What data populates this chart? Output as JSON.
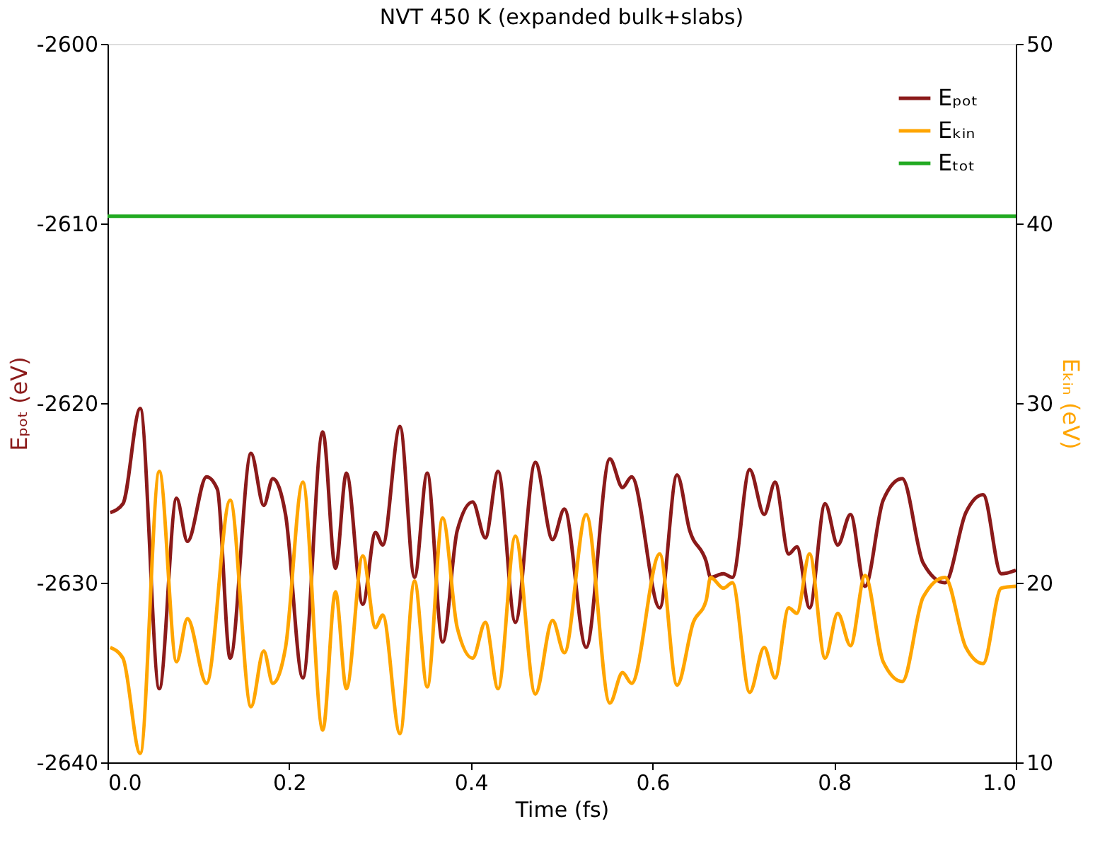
{
  "chart_data": {
    "type": "line",
    "title": "NVT 450 K (expanded bulk+slabs)",
    "xlabel": "Time (fs)",
    "ylabel": "Eₚₒₜ (eV)",
    "y2label": "Eₖᵢₙ (eV)",
    "xlim": [
      0,
      1
    ],
    "xticks": [
      {
        "value": 0,
        "label": "0.0"
      },
      0.2,
      0.4,
      0.6,
      0.8,
      {
        "value": 1,
        "label": "1.0"
      }
    ],
    "ylim": [
      -2640,
      -2600
    ],
    "yticks": [
      -2640,
      -2630,
      -2620,
      -2610,
      -2600
    ],
    "y2lim": [
      10,
      50
    ],
    "y2ticks": [
      10,
      20,
      30,
      40,
      50
    ],
    "legend": "top right",
    "series": [
      {
        "name": "Eₚₒₜ",
        "color": "#8b1a1a",
        "x": [
          0.003,
          0.017,
          0.036,
          0.057,
          0.076,
          0.088,
          0.109,
          0.121,
          0.135,
          0.158,
          0.172,
          0.182,
          0.196,
          0.215,
          0.237,
          0.251,
          0.263,
          0.281,
          0.295,
          0.303,
          0.322,
          0.338,
          0.352,
          0.369,
          0.385,
          0.402,
          0.416,
          0.43,
          0.449,
          0.471,
          0.49,
          0.503,
          0.527,
          0.553,
          0.567,
          0.577,
          0.608,
          0.627,
          0.641,
          0.659,
          0.664,
          0.678,
          0.688,
          0.707,
          0.723,
          0.735,
          0.75,
          0.759,
          0.773,
          0.79,
          0.804,
          0.818,
          0.834,
          0.854,
          0.875,
          0.898,
          0.922,
          0.945,
          0.964,
          0.984,
          1.0
        ],
        "values": [
          -2626.1,
          -2625.6,
          -2620.3,
          -2635.9,
          -2625.3,
          -2627.7,
          -2624.1,
          -2624.8,
          -2634.2,
          -2622.8,
          -2625.7,
          -2624.2,
          -2626.2,
          -2635.3,
          -2621.6,
          -2629.2,
          -2623.9,
          -2631.2,
          -2627.2,
          -2627.9,
          -2621.3,
          -2629.7,
          -2623.9,
          -2633.3,
          -2627.1,
          -2625.5,
          -2627.5,
          -2623.8,
          -2632.2,
          -2623.3,
          -2627.6,
          -2625.9,
          -2633.6,
          -2623.1,
          -2624.7,
          -2624.1,
          -2631.4,
          -2624.0,
          -2627.1,
          -2628.8,
          -2629.7,
          -2629.5,
          -2629.7,
          -2623.7,
          -2626.2,
          -2624.4,
          -2628.4,
          -2628.0,
          -2631.4,
          -2625.6,
          -2627.9,
          -2626.2,
          -2630.2,
          -2625.4,
          -2624.2,
          -2628.9,
          -2630.0,
          -2626.1,
          -2625.1,
          -2629.5,
          -2629.3
        ]
      },
      {
        "name": "Eₖᵢₙ",
        "color": "#ffa500",
        "axis": "y2",
        "x": [
          0.003,
          0.017,
          0.036,
          0.057,
          0.076,
          0.088,
          0.109,
          0.135,
          0.158,
          0.172,
          0.182,
          0.196,
          0.215,
          0.237,
          0.251,
          0.263,
          0.281,
          0.295,
          0.303,
          0.322,
          0.338,
          0.352,
          0.369,
          0.385,
          0.402,
          0.416,
          0.43,
          0.449,
          0.471,
          0.49,
          0.503,
          0.527,
          0.553,
          0.567,
          0.577,
          0.608,
          0.627,
          0.645,
          0.659,
          0.664,
          0.678,
          0.688,
          0.707,
          0.723,
          0.735,
          0.75,
          0.759,
          0.773,
          0.79,
          0.804,
          0.818,
          0.834,
          0.854,
          0.875,
          0.898,
          0.922,
          0.945,
          0.964,
          0.984,
          1.0
        ],
        "values": [
          16.4,
          15.8,
          10.5,
          26.2,
          15.6,
          18.0,
          14.4,
          24.6,
          13.1,
          16.2,
          14.4,
          16.4,
          25.6,
          11.8,
          19.5,
          14.1,
          21.5,
          17.5,
          18.2,
          11.6,
          20.1,
          14.2,
          23.6,
          17.5,
          15.8,
          17.8,
          14.1,
          22.6,
          13.8,
          17.9,
          16.1,
          23.8,
          13.3,
          15.0,
          14.4,
          21.6,
          14.3,
          17.8,
          19.0,
          20.3,
          19.7,
          20.0,
          13.9,
          16.4,
          14.7,
          18.6,
          18.3,
          21.6,
          15.8,
          18.3,
          16.5,
          20.4,
          15.6,
          14.5,
          19.2,
          20.3,
          16.4,
          15.5,
          19.7,
          19.8
        ]
      },
      {
        "name": "Eₜₒₜ",
        "color": "#22aa22",
        "x": [
          0,
          1
        ],
        "values": [
          -2609.6,
          -2609.6
        ]
      }
    ]
  }
}
